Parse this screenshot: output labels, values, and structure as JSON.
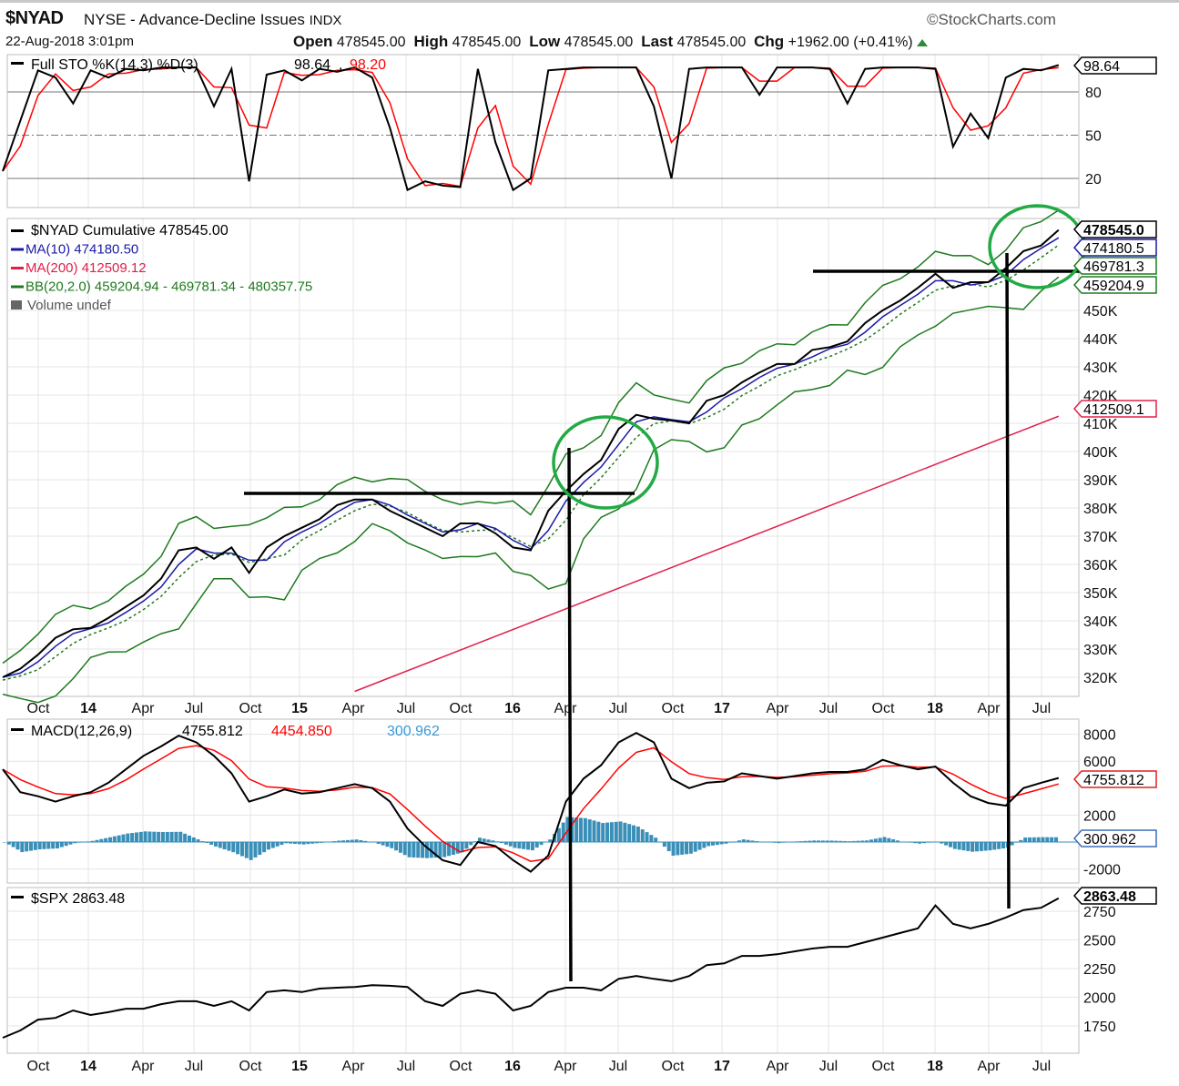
{
  "header": {
    "symbol": "$NYAD",
    "name": "NYSE - Advance-Decline Issues",
    "exchange": "INDX",
    "datetime": "22-Aug-2018 3:01pm",
    "open_label": "Open",
    "open": "478545.00",
    "high_label": "High",
    "high": "478545.00",
    "low_label": "Low",
    "low": "478545.00",
    "last_label": "Last",
    "last": "478545.00",
    "chg_label": "Chg",
    "chg": "+1962.00 (+0.41%)",
    "brand": "©StockCharts.com",
    "trend_icon": "triangle-up-green"
  },
  "colors": {
    "price": "#000000",
    "ma10": "#1a1aa8",
    "ma200": "#e0204a",
    "bb": "#1e7a1e",
    "sto_d": "#ff0000",
    "macd_signal": "#ff0000",
    "histogram": "#3a8fb8",
    "annotation_circle": "#22aa44"
  },
  "x_axis_labels": [
    "Oct",
    "14",
    "Apr",
    "Jul",
    "Oct",
    "15",
    "Apr",
    "Jul",
    "Oct",
    "16",
    "Apr",
    "Jul",
    "Oct",
    "17",
    "Apr",
    "Jul",
    "Oct",
    "18",
    "Apr",
    "Jul"
  ],
  "chart_data": [
    {
      "type": "line",
      "panel": "Full STO",
      "legend": {
        "prefix": "Full STO %K(14,3) %D(3)",
        "k": "98.64",
        "d": "98.20"
      },
      "x_start": "2013-08",
      "x_step": "month",
      "ylim": [
        0,
        100
      ],
      "reference_lines": [
        80,
        50,
        20
      ],
      "yticks": [
        "80",
        "50",
        "20"
      ],
      "last_value_tag": "98.64",
      "k_values": [
        25,
        60,
        95,
        90,
        72,
        95,
        90,
        96,
        95,
        97,
        97,
        97,
        70,
        96,
        18,
        92,
        95,
        88,
        96,
        94,
        97,
        90,
        55,
        12,
        18,
        15,
        14,
        96,
        45,
        12,
        20,
        95,
        96,
        97,
        97,
        97,
        97,
        70,
        20,
        96,
        97,
        97,
        97,
        78,
        97,
        97,
        97,
        96,
        72,
        96,
        97,
        97,
        97,
        96,
        42,
        65,
        48,
        90,
        96,
        95,
        98.64
      ]
    },
    {
      "type": "line",
      "panel": "$NYAD Cumulative",
      "legend": [
        {
          "text": "$NYAD Cumulative 478545.00",
          "color": "#000000"
        },
        {
          "text": "MA(10) 474180.50",
          "color": "#1a1aa8"
        },
        {
          "text": "MA(200) 412509.12",
          "color": "#e0204a"
        },
        {
          "text": "BB(20,2.0) 459204.94 - 469781.34 - 480357.75",
          "color": "#1e7a1e"
        },
        {
          "text": "Volume undef",
          "color": "#555555"
        }
      ],
      "x_start": "2013-08",
      "x_step": "month",
      "ylim_k": [
        315,
        482
      ],
      "yticks": [
        "450K",
        "440K",
        "430K",
        "420K",
        "410K",
        "400K",
        "390K",
        "380K",
        "370K",
        "360K",
        "350K",
        "340K",
        "330K",
        "320K"
      ],
      "value_tags": [
        {
          "text": "478545.0",
          "color": "#000000",
          "bold": true
        },
        {
          "text": "474180.5",
          "color": "#1a1aa8"
        },
        {
          "text": "469781.3",
          "color": "#1e7a1e"
        },
        {
          "text": "459204.9",
          "color": "#1e7a1e"
        },
        {
          "text": "412509.1",
          "color": "#e0204a"
        }
      ],
      "price_k": [
        320,
        323,
        328,
        334,
        337,
        337.5,
        341,
        345,
        349,
        355,
        365,
        366,
        362,
        366,
        357,
        366,
        370,
        373,
        376,
        381,
        383,
        383,
        379,
        376,
        373,
        370,
        374.5,
        374.5,
        371,
        366,
        365,
        379,
        386,
        392,
        397,
        408,
        413,
        411.6,
        411,
        410,
        418,
        420,
        424.5,
        428,
        431,
        431,
        436,
        437,
        439,
        445.5,
        450,
        453.5,
        458,
        463,
        458,
        460,
        460,
        465,
        471,
        473,
        478.5
      ],
      "ma200_k": [
        {
          "date": "2015-04",
          "value": 315
        },
        {
          "date": "2018-08",
          "value": 412.5
        }
      ]
    },
    {
      "type": "line+bar",
      "panel": "MACD",
      "legend": {
        "prefix": "MACD(12,26,9)",
        "macd": "4755.812",
        "signal": "4454.850",
        "histogram": "300.962"
      },
      "x_start": "2013-08",
      "x_step": "month",
      "ylim": [
        -3000,
        9000
      ],
      "yticks": [
        "8000",
        "6000",
        "2000",
        "-2000"
      ],
      "value_tags": [
        "4755.812",
        "300.962"
      ],
      "macd": [
        5400,
        3700,
        3400,
        3000,
        3400,
        3700,
        4400,
        5400,
        6400,
        7100,
        7900,
        7400,
        6400,
        5100,
        3000,
        3400,
        3900,
        3600,
        3700,
        4000,
        4300,
        4000,
        3000,
        1000,
        -300,
        -1350,
        -1700,
        0,
        -300,
        -1350,
        -2200,
        -1000,
        3000,
        4700,
        5700,
        7400,
        8100,
        7400,
        4700,
        4000,
        4400,
        4500,
        5100,
        4900,
        4700,
        4900,
        5100,
        5200,
        5200,
        5400,
        6100,
        5700,
        5400,
        5600,
        4400,
        3400,
        2900,
        2700,
        4000,
        4400,
        4755.812
      ]
    },
    {
      "type": "line",
      "panel": "$SPX",
      "legend": "$SPX 2863.48",
      "x_start": "2013-08",
      "x_step": "month",
      "ylim": [
        1600,
        2950
      ],
      "yticks": [
        "2750",
        "2500",
        "2250",
        "2000",
        "1750"
      ],
      "value_tag": "2863.48",
      "values": [
        1647,
        1710,
        1805,
        1820,
        1885,
        1845,
        1870,
        1900,
        1900,
        1940,
        1965,
        1965,
        1925,
        1965,
        1885,
        2045,
        2060,
        2045,
        2075,
        2083,
        2090,
        2105,
        2100,
        2090,
        1965,
        1925,
        2030,
        2060,
        2030,
        1885,
        1925,
        2045,
        2083,
        2083,
        2060,
        2160,
        2185,
        2160,
        2140,
        2185,
        2280,
        2295,
        2360,
        2360,
        2375,
        2400,
        2425,
        2440,
        2440,
        2480,
        2520,
        2560,
        2600,
        2800,
        2640,
        2600,
        2640,
        2695,
        2760,
        2780,
        2863.48
      ]
    }
  ]
}
